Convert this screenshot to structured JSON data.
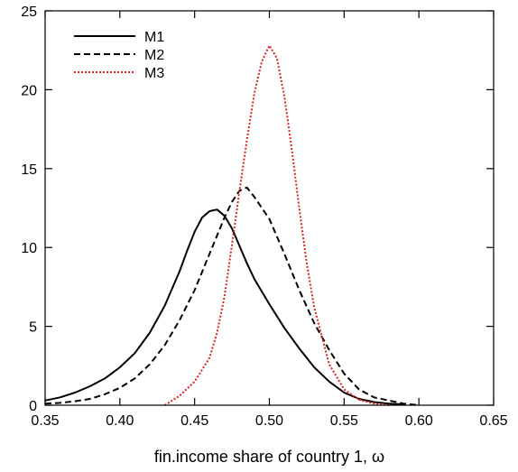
{
  "chart_data": {
    "type": "line",
    "title": "",
    "xlabel": "fin.income share of country 1, ω",
    "ylabel": "",
    "xlim": [
      0.35,
      0.65
    ],
    "ylim": [
      0,
      25
    ],
    "xticks": [
      "0.35",
      "0.40",
      "0.45",
      "0.50",
      "0.55",
      "0.60",
      "0.65"
    ],
    "yticks": [
      "0",
      "5",
      "10",
      "15",
      "20",
      "25"
    ],
    "grid": false,
    "legend": "top-left",
    "series": [
      {
        "name": "M1",
        "style": "solid",
        "color": "#000000",
        "x": [
          0.35,
          0.36,
          0.37,
          0.38,
          0.39,
          0.4,
          0.41,
          0.42,
          0.43,
          0.44,
          0.445,
          0.45,
          0.455,
          0.46,
          0.465,
          0.47,
          0.475,
          0.48,
          0.485,
          0.49,
          0.5,
          0.51,
          0.52,
          0.53,
          0.54,
          0.55,
          0.56,
          0.57,
          0.58,
          0.59
        ],
        "y": [
          0.3,
          0.5,
          0.8,
          1.2,
          1.7,
          2.4,
          3.3,
          4.6,
          6.3,
          8.5,
          9.8,
          11.0,
          11.9,
          12.3,
          12.4,
          12.0,
          11.2,
          10.1,
          9.0,
          8.0,
          6.4,
          4.9,
          3.6,
          2.4,
          1.5,
          0.8,
          0.4,
          0.2,
          0.1,
          0.05
        ]
      },
      {
        "name": "M2",
        "style": "dashed",
        "color": "#000000",
        "x": [
          0.35,
          0.36,
          0.37,
          0.38,
          0.39,
          0.4,
          0.41,
          0.42,
          0.43,
          0.44,
          0.45,
          0.46,
          0.47,
          0.475,
          0.48,
          0.485,
          0.49,
          0.5,
          0.51,
          0.52,
          0.53,
          0.54,
          0.55,
          0.56,
          0.57,
          0.58,
          0.59,
          0.6
        ],
        "y": [
          0.1,
          0.15,
          0.25,
          0.4,
          0.7,
          1.1,
          1.7,
          2.6,
          3.8,
          5.4,
          7.3,
          9.6,
          11.9,
          12.9,
          13.6,
          13.8,
          13.2,
          11.8,
          9.6,
          7.3,
          5.2,
          3.5,
          2.0,
          1.0,
          0.5,
          0.3,
          0.1,
          0.0
        ]
      },
      {
        "name": "M3",
        "style": "dotted",
        "color": "#e02020",
        "x": [
          0.43,
          0.44,
          0.45,
          0.46,
          0.465,
          0.47,
          0.475,
          0.48,
          0.485,
          0.49,
          0.495,
          0.5,
          0.505,
          0.51,
          0.515,
          0.52,
          0.525,
          0.53,
          0.54,
          0.55,
          0.56,
          0.57,
          0.58
        ],
        "y": [
          0.0,
          0.6,
          1.5,
          3.0,
          4.6,
          6.9,
          10.2,
          13.6,
          16.8,
          19.8,
          21.8,
          22.8,
          22.0,
          19.6,
          16.2,
          12.5,
          9.0,
          6.2,
          2.6,
          1.0,
          0.35,
          0.1,
          0.0
        ]
      }
    ]
  }
}
